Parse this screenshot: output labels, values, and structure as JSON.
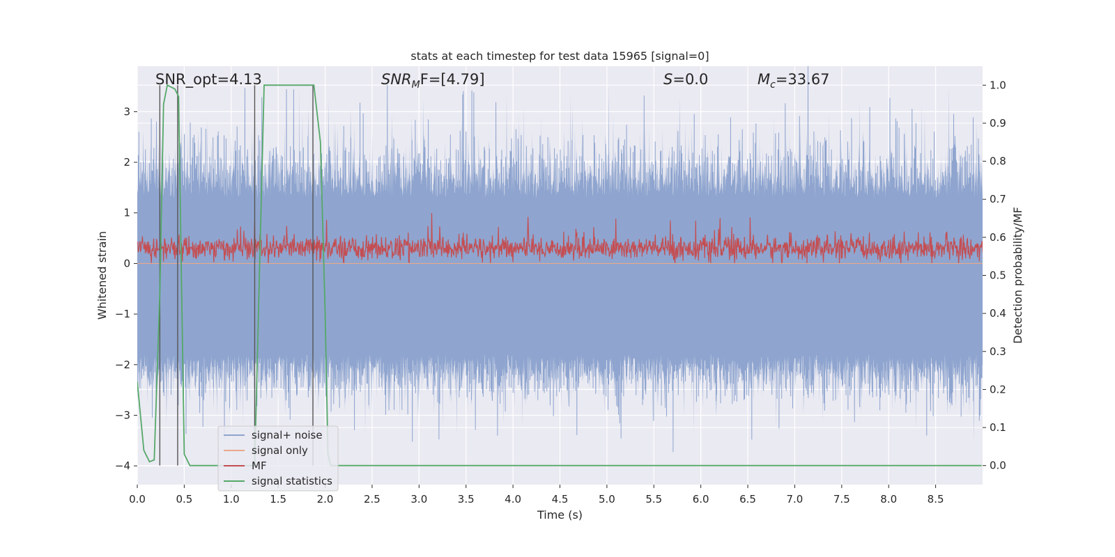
{
  "chart_data": {
    "type": "line",
    "title": "stats at each timestep for test data 15965 [signal=0]",
    "xlabel": "Time (s)",
    "ylabel_left": "Whitened strain",
    "ylabel_right": "Detection probability/MF",
    "xlim": [
      0.0,
      9.0
    ],
    "ylim_left": [
      -4.37,
      3.9
    ],
    "ylim_right": [
      -0.05,
      1.05
    ],
    "x_ticks": [
      "0.0",
      "0.5",
      "1.0",
      "1.5",
      "2.0",
      "2.5",
      "3.0",
      "3.5",
      "4.0",
      "4.5",
      "5.0",
      "5.5",
      "6.0",
      "6.5",
      "7.0",
      "7.5",
      "8.0",
      "8.5"
    ],
    "y_ticks_left": [
      "3",
      "2",
      "1",
      "0",
      "−1",
      "−2",
      "−3",
      "−4"
    ],
    "y_ticks_right": [
      "1.0",
      "0.9",
      "0.8",
      "0.7",
      "0.6",
      "0.5",
      "0.4",
      "0.3",
      "0.2",
      "0.1",
      "0.0"
    ],
    "annotations": {
      "snr_opt": "SNR_opt=4.13",
      "snr_mf_base": "SNR",
      "snr_mf_sub": "M",
      "snr_mf_rest": "F=[4.79]",
      "s_base": "S",
      "s_rest": "=0.0",
      "mc_base": "M",
      "mc_sub": "c",
      "mc_rest": "=33.67"
    },
    "legend": [
      {
        "label": "signal+ noise",
        "color": "#8fa5cf"
      },
      {
        "label": "signal only",
        "color": "#e8a88a"
      },
      {
        "label": "MF",
        "color": "#c44e52"
      },
      {
        "label": "signal statistics",
        "color": "#55a868"
      }
    ],
    "series": [
      {
        "name": "signal+ noise",
        "type": "noise",
        "typical_range": [
          -1.8,
          1.3
        ],
        "peak_range": [
          -3.5,
          3.55
        ],
        "color": "#8fa5cf"
      },
      {
        "name": "signal only",
        "values": [
          0.0
        ],
        "color": "#e8a88a"
      },
      {
        "name": "MF",
        "type": "noise",
        "typical_range": [
          0.05,
          0.55
        ],
        "peak_range": [
          0.0,
          1.0
        ],
        "color": "#c44e52"
      },
      {
        "name": "signal statistics",
        "axis": "right",
        "color": "#55a868",
        "x": [
          0.0,
          0.07,
          0.13,
          0.18,
          0.24,
          0.28,
          0.32,
          0.4,
          0.44,
          0.47,
          0.5,
          0.56,
          1.25,
          1.3,
          1.35,
          1.88,
          1.95,
          2.0,
          2.03,
          2.06,
          8.99
        ],
        "y": [
          0.22,
          0.04,
          0.01,
          0.015,
          0.45,
          0.95,
          1.0,
          0.99,
          0.97,
          0.5,
          0.03,
          0.0,
          0.0,
          0.5,
          1.0,
          1.0,
          0.85,
          0.4,
          0.03,
          0.0,
          0.0
        ]
      }
    ],
    "vertical_markers_x": [
      0.24,
      0.43,
      1.25,
      1.87
    ]
  }
}
